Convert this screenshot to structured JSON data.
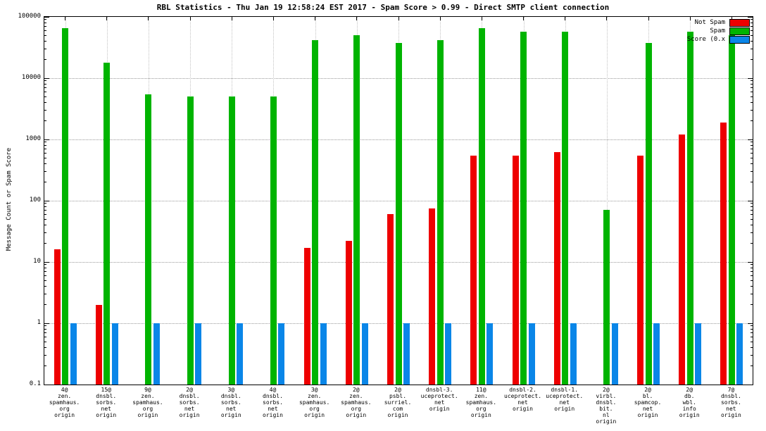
{
  "title": "RBL Statistics - Thu Jan 19 12:58:24 EST 2017 - Spam Score > 0.99 - Direct SMTP client connection",
  "y_axis_label": "Message Count or Spam Score",
  "legend": [
    {
      "label": "Not Spam",
      "color": "#ee0000"
    },
    {
      "label": "Spam",
      "color": "#00b400"
    },
    {
      "label": "Score (0.x",
      "color": "#0a86e8"
    }
  ],
  "chart_data": {
    "type": "bar",
    "scale": "log",
    "ylim": [
      0.1,
      100000
    ],
    "y_ticks": [
      "100000",
      "10000",
      "1000",
      "100",
      "10",
      "1",
      "0.1"
    ],
    "grid": true,
    "legend_position": "top-right",
    "title": "RBL Statistics - Thu Jan 19 12:58:24 EST 2017 - Spam Score > 0.99 - Direct SMTP client connection",
    "ylabel": "Message Count or Spam Score",
    "xlabel": "",
    "categories": [
      [
        "4@",
        "zen.",
        "spamhaus.",
        "org",
        "origin"
      ],
      [
        "15@",
        "dnsbl.",
        "sorbs.",
        "net",
        "origin"
      ],
      [
        "9@",
        "zen.",
        "spamhaus.",
        "org",
        "origin"
      ],
      [
        "2@",
        "dnsbl.",
        "sorbs.",
        "net",
        "origin"
      ],
      [
        "3@",
        "dnsbl.",
        "sorbs.",
        "net",
        "origin"
      ],
      [
        "4@",
        "dnsbl.",
        "sorbs.",
        "net",
        "origin"
      ],
      [
        "3@",
        "zen.",
        "spamhaus.",
        "org",
        "origin"
      ],
      [
        "2@",
        "zen.",
        "spamhaus.",
        "org",
        "origin"
      ],
      [
        "2@",
        "psbl.",
        "surriel.",
        "com",
        "origin"
      ],
      [
        "dnsbl-3.",
        "uceprotect.",
        "net",
        "origin"
      ],
      [
        "11@",
        "zen.",
        "spamhaus.",
        "org",
        "origin"
      ],
      [
        "dnsbl-2.",
        "uceprotect.",
        "net",
        "origin"
      ],
      [
        "dnsbl-1.",
        "uceprotect.",
        "net",
        "origin"
      ],
      [
        "2@",
        "virbl.",
        "dnsbl.",
        "bit.",
        "nl",
        "origin"
      ],
      [
        "2@",
        "bl.",
        "spamcop.",
        "net",
        "origin"
      ],
      [
        "2@",
        "db.",
        "wbl.",
        "info",
        "origin"
      ],
      [
        "7@",
        "dnsbl.",
        "sorbs.",
        "net",
        "origin"
      ]
    ],
    "series": [
      {
        "name": "Not Spam",
        "color": "#ee0000",
        "values": [
          16,
          2,
          0,
          0,
          0,
          0,
          17,
          22,
          60,
          75,
          550,
          550,
          620,
          0,
          550,
          1200,
          1900
        ]
      },
      {
        "name": "Spam",
        "color": "#00b400",
        "values": [
          65000,
          18000,
          5500,
          5000,
          5000,
          5000,
          42000,
          50000,
          38000,
          42000,
          65000,
          58000,
          58000,
          70,
          38000,
          58000,
          50000
        ]
      },
      {
        "name": "Score (0.x",
        "color": "#0a86e8",
        "values": [
          1,
          1,
          1,
          1,
          1,
          1,
          1,
          1,
          1,
          1,
          1,
          1,
          1,
          1,
          1,
          1,
          1
        ]
      }
    ]
  }
}
